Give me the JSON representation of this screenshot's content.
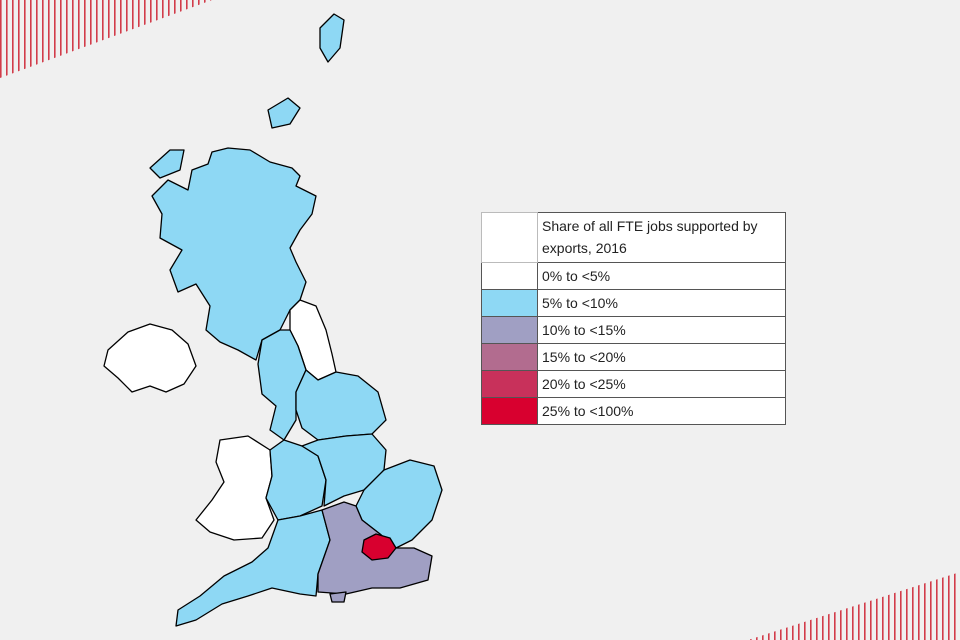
{
  "legend": {
    "title": "Share of all FTE jobs supported by exports, 2016",
    "items": [
      {
        "label": "0% to <5%",
        "color": "#ffffff"
      },
      {
        "label": "5% to <10%",
        "color": "#8ed8f4"
      },
      {
        "label": "10% to <15%",
        "color": "#a09fc3"
      },
      {
        "label": "15% to <20%",
        "color": "#b26c8f"
      },
      {
        "label": "20% to <25%",
        "color": "#c8315b"
      },
      {
        "label": "25% to <100%",
        "color": "#d8002f"
      }
    ]
  }
}
